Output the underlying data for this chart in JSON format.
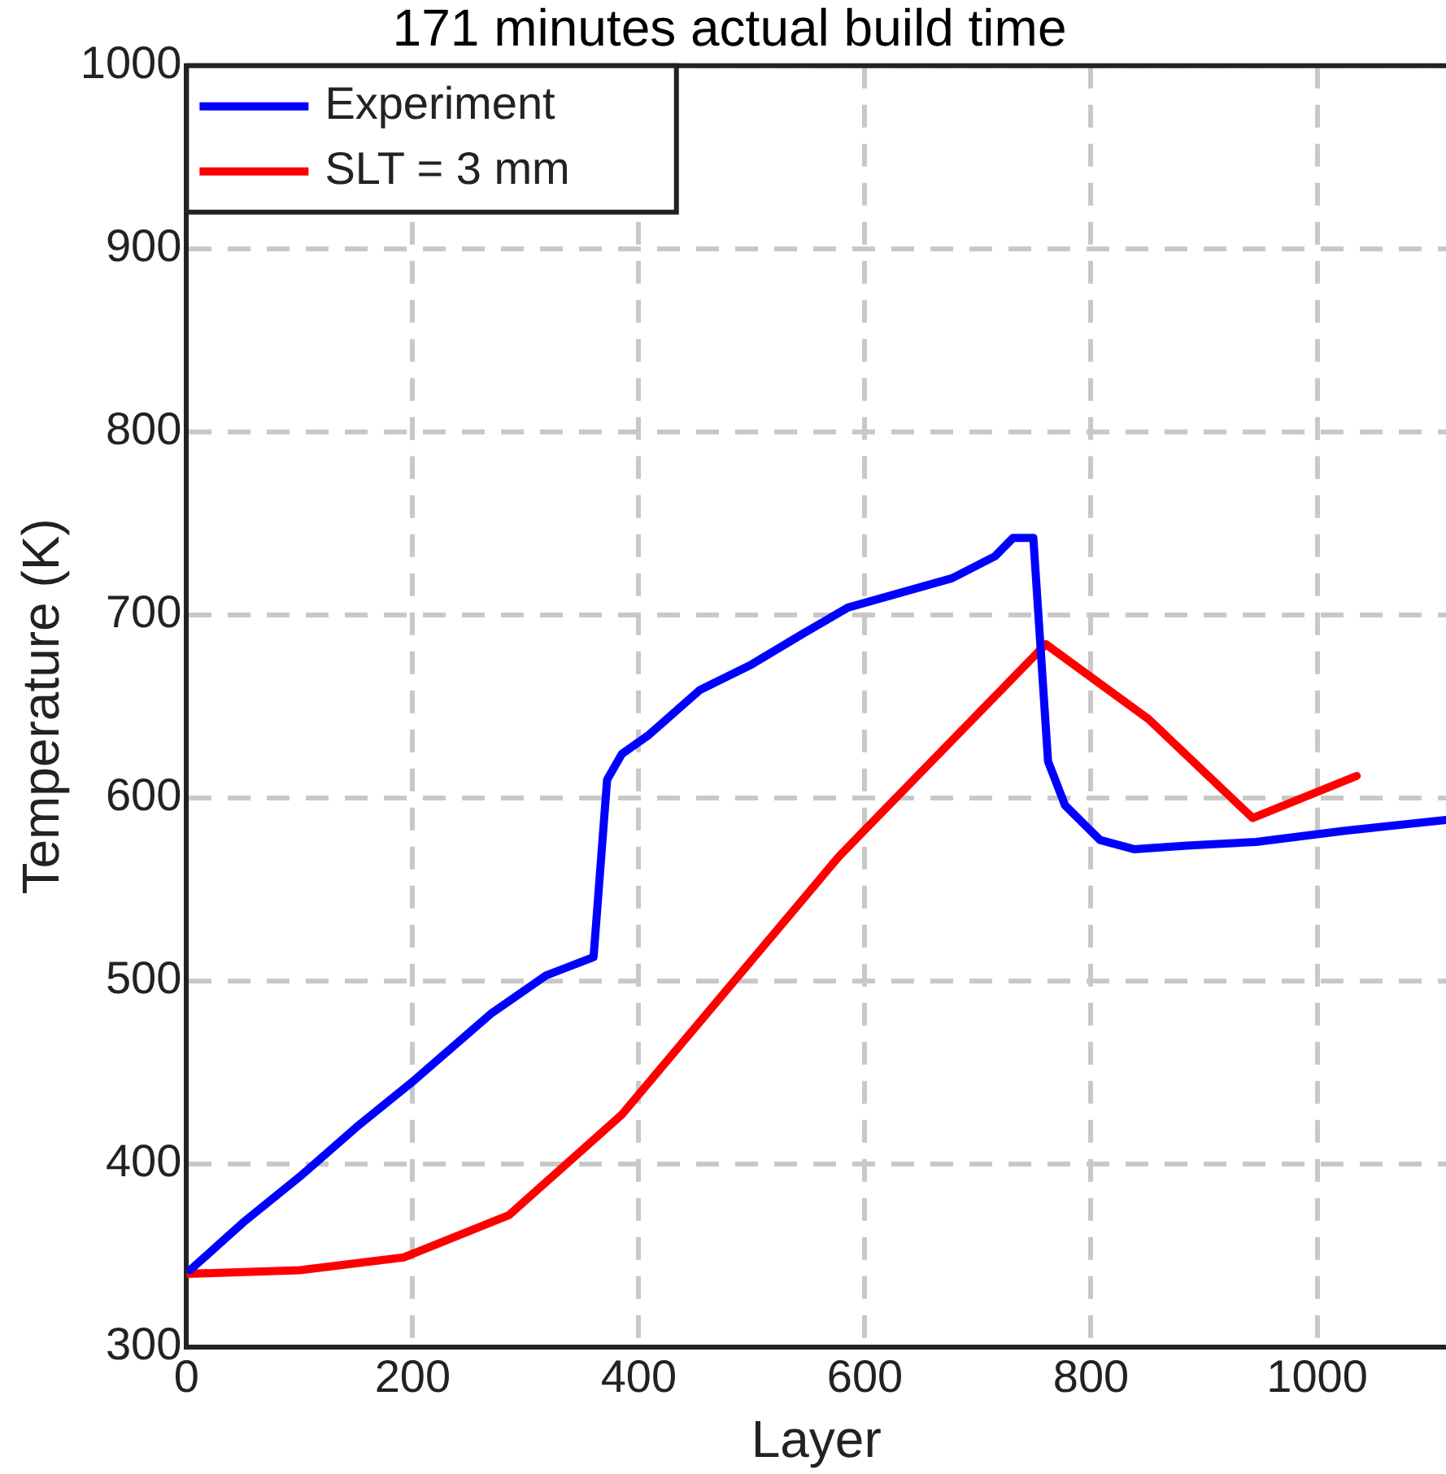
{
  "chart_data": {
    "type": "line",
    "title": "171 minutes actual build time",
    "xlabel": "Layer",
    "ylabel": "Temperature (K)",
    "xlim": [
      0,
      1114
    ],
    "xticks": [
      0,
      200,
      400,
      600,
      800,
      1000
    ],
    "ylim": [
      300,
      1000
    ],
    "yticks": [
      300,
      400,
      500,
      600,
      700,
      800,
      900,
      1000
    ],
    "grid": true,
    "legend": "top left",
    "line_style": "solid",
    "marker": "none",
    "series": [
      {
        "name": "Experiment",
        "color": "#0000ff",
        "x": [
          3,
          50,
          100,
          150,
          200,
          269,
          318,
          360,
          372,
          385,
          408,
          454,
          500,
          546,
          585,
          631,
          677,
          715,
          731,
          749,
          762,
          777,
          808,
          838,
          885,
          946,
          1023,
          1114
        ],
        "values": [
          342,
          368,
          393,
          420,
          445,
          482,
          503,
          513,
          610,
          624,
          634,
          659,
          673,
          690,
          704,
          712,
          720,
          732,
          742,
          742,
          620,
          596,
          577,
          572,
          574,
          576,
          582,
          588
        ]
      },
      {
        "name": "SLT = 3 mm",
        "color": "#ff0000",
        "x": [
          0,
          100,
          192,
          285,
          385,
          577,
          760,
          851,
          943,
          1035
        ],
        "values": [
          340,
          342,
          349,
          372,
          427,
          568,
          684,
          643,
          589,
          612
        ]
      }
    ]
  }
}
